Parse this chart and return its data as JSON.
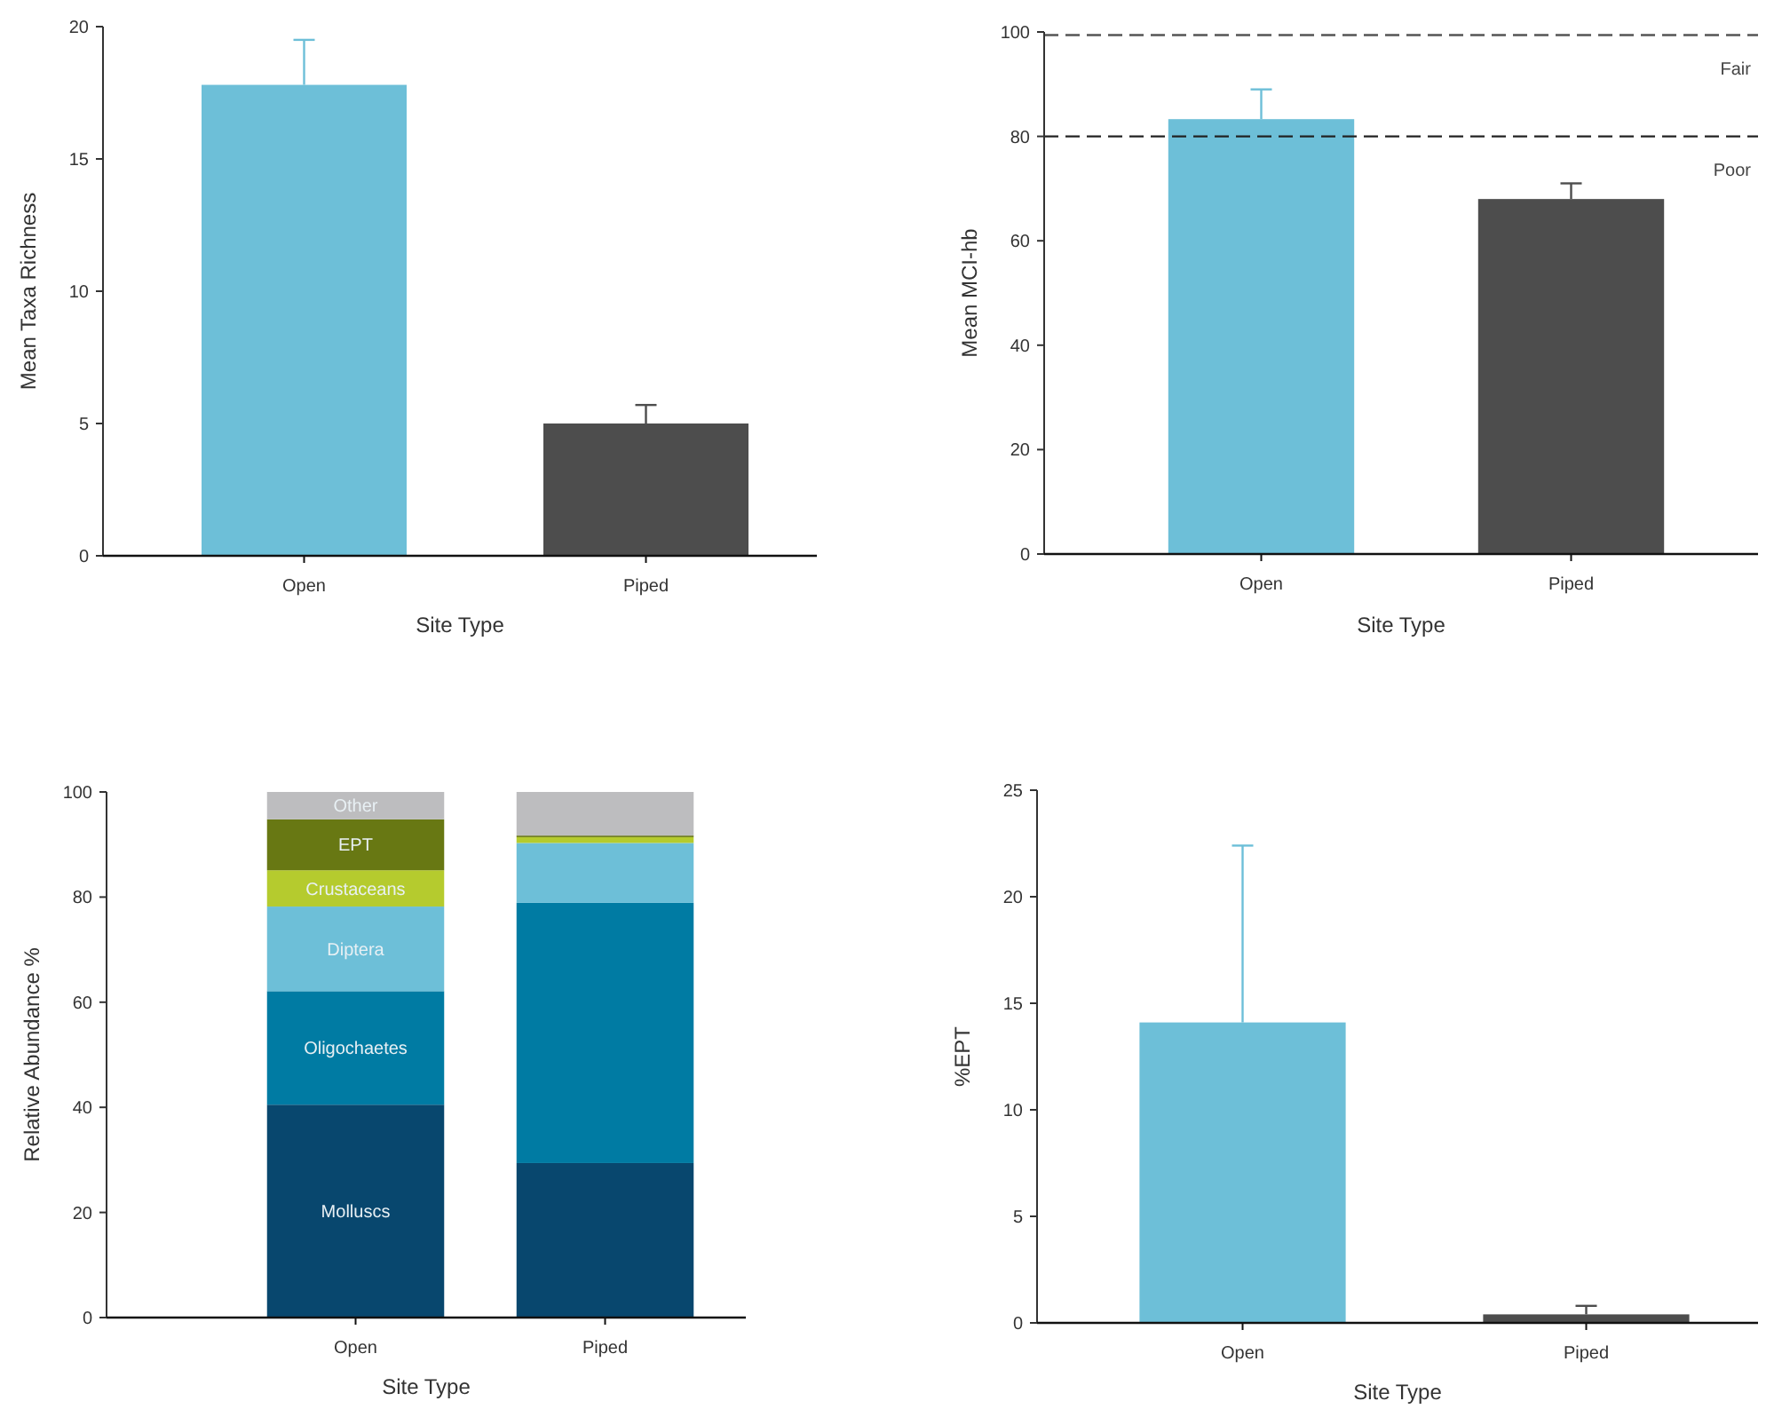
{
  "chart_data": [
    {
      "type": "bar",
      "categories": [
        "Open",
        "Piped"
      ],
      "values": [
        17.8,
        5.0
      ],
      "colors": [
        "#6dbfd8",
        "#4d4d4d"
      ],
      "errors": [
        [
          17.8,
          19.5
        ],
        [
          5.0,
          5.7
        ]
      ],
      "ylim": [
        0,
        20
      ],
      "yticks": [
        0,
        5,
        10,
        15,
        20
      ],
      "xlabel": "Site Type",
      "ylabel": "Mean Taxa Richness"
    },
    {
      "type": "bar",
      "categories": [
        "Open",
        "Piped"
      ],
      "values": [
        83.3,
        68
      ],
      "colors": [
        "#6dbfd8",
        "#4d4d4d"
      ],
      "errors": [
        [
          83.3,
          89
        ],
        [
          68,
          71
        ]
      ],
      "ylim": [
        0,
        100
      ],
      "yticks": [
        0,
        20,
        40,
        60,
        80,
        100
      ],
      "xlabel": "Site Type",
      "ylabel": "Mean MCI-hb",
      "ref_lines": [
        {
          "axis": "y",
          "value": 99.4,
          "line_style": "dashed",
          "color": "#555555"
        },
        {
          "axis": "y",
          "value": 80,
          "line_style": "dashed",
          "color": "#222222"
        }
      ],
      "annotations": [
        "Fair",
        "Poor"
      ]
    },
    {
      "type": "bar",
      "stacked": true,
      "categories": [
        "Open",
        "Piped"
      ],
      "ylim": [
        0,
        100
      ],
      "yticks": [
        0,
        20,
        40,
        60,
        80,
        100
      ],
      "xlabel": "Site Type",
      "ylabel": "Relative Abundance %",
      "series": [
        {
          "name": "Molluscs",
          "color": "#08476e",
          "values": [
            40.5,
            29.4
          ]
        },
        {
          "name": "Oligochaetes",
          "color": "#007ba3",
          "values": [
            21.6,
            49.5
          ]
        },
        {
          "name": "Diptera",
          "color": "#6dbfd8",
          "values": [
            16.1,
            11.4
          ]
        },
        {
          "name": "Crustaceans",
          "color": "#b5cb2e",
          "values": [
            6.9,
            1.1
          ]
        },
        {
          "name": "EPT",
          "color": "#687813",
          "values": [
            9.7,
            0.3
          ]
        },
        {
          "name": "Other",
          "color": "#bdbdbf",
          "values": [
            5.2,
            8.3
          ]
        }
      ]
    },
    {
      "type": "bar",
      "categories": [
        "Open",
        "Piped"
      ],
      "values": [
        14.1,
        0.4
      ],
      "colors": [
        "#6dbfd8",
        "#4d4d4d"
      ],
      "errors": [
        [
          14.1,
          22.4
        ],
        [
          0.4,
          0.8
        ]
      ],
      "ylim": [
        0,
        25
      ],
      "yticks": [
        0,
        5,
        10,
        15,
        20,
        25
      ],
      "xlabel": "Site Type",
      "ylabel": "%EPT"
    }
  ]
}
